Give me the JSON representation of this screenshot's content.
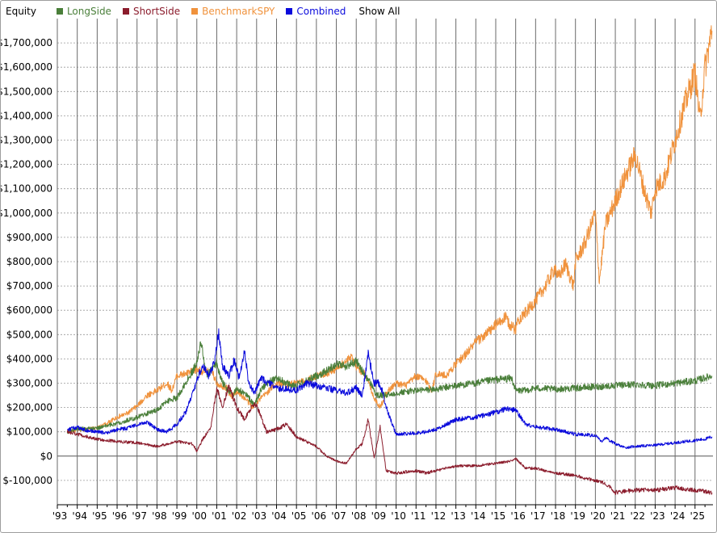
{
  "legend": {
    "title": "Equity",
    "show_all_label": "Show All",
    "items": [
      {
        "label": "LongSide",
        "color": "#4a7f3a"
      },
      {
        "label": "ShortSide",
        "color": "#8b1c2c"
      },
      {
        "label": "BenchmarkSPY",
        "color": "#f0923c"
      },
      {
        "label": "Combined",
        "color": "#0a0adc"
      }
    ]
  },
  "chart_data": {
    "type": "line",
    "title": "",
    "xlabel": "",
    "ylabel": "",
    "grid": true,
    "legend_position": "top-left",
    "xlim": [
      1993.0,
      2025.9
    ],
    "ylim": [
      -200000,
      1800000
    ],
    "y_ticks": [
      "$1,700,000",
      "$1,600,000",
      "$1,500,000",
      "$1,400,000",
      "$1,300,000",
      "$1,200,000",
      "$1,100,000",
      "$1,000,000",
      "$900,000",
      "$800,000",
      "$700,000",
      "$600,000",
      "$500,000",
      "$400,000",
      "$300,000",
      "$200,000",
      "$100,000",
      "$0",
      "$-100,000"
    ],
    "y_tick_values": [
      1700000,
      1600000,
      1500000,
      1400000,
      1300000,
      1200000,
      1100000,
      1000000,
      900000,
      800000,
      700000,
      600000,
      500000,
      400000,
      300000,
      200000,
      100000,
      0,
      -100000
    ],
    "x_ticks": [
      "'93",
      "'94",
      "'95",
      "'96",
      "'97",
      "'98",
      "'99",
      "'00",
      "'01",
      "'02",
      "'03",
      "'04",
      "'05",
      "'06",
      "'07",
      "'08",
      "'09",
      "'10",
      "'11",
      "'12",
      "'13",
      "'14",
      "'15",
      "'16",
      "'17",
      "'18",
      "'19",
      "'20",
      "'21",
      "'22",
      "'23",
      "'24",
      "'25"
    ],
    "x_tick_values": [
      1993,
      1994,
      1995,
      1996,
      1997,
      1998,
      1999,
      2000,
      2001,
      2002,
      2003,
      2004,
      2005,
      2006,
      2007,
      2008,
      2009,
      2010,
      2011,
      2012,
      2013,
      2014,
      2015,
      2016,
      2017,
      2018,
      2019,
      2020,
      2021,
      2022,
      2023,
      2024,
      2025
    ],
    "series": [
      {
        "name": "BenchmarkSPY",
        "color": "#f0923c",
        "x": [
          1993.5,
          1994.0,
          1994.5,
          1995.0,
          1995.5,
          1996.0,
          1996.5,
          1997.0,
          1997.5,
          1998.0,
          1998.5,
          1998.75,
          1999.0,
          1999.5,
          2000.0,
          2000.5,
          2000.75,
          2001.0,
          2001.5,
          2001.75,
          2002.0,
          2002.5,
          2002.8,
          2003.0,
          2003.5,
          2004.0,
          2004.5,
          2005.0,
          2005.5,
          2006.0,
          2006.5,
          2007.0,
          2007.5,
          2007.8,
          2008.0,
          2008.5,
          2008.9,
          2009.2,
          2009.5,
          2010.0,
          2010.5,
          2011.0,
          2011.5,
          2011.8,
          2012.0,
          2012.5,
          2013.0,
          2013.5,
          2014.0,
          2014.5,
          2015.0,
          2015.5,
          2015.7,
          2016.0,
          2016.1,
          2016.5,
          2017.0,
          2017.5,
          2018.0,
          2018.1,
          2018.5,
          2018.9,
          2019.0,
          2019.5,
          2020.0,
          2020.2,
          2020.5,
          2021.0,
          2021.5,
          2022.0,
          2022.5,
          2022.8,
          2023.0,
          2023.5,
          2024.0,
          2024.5,
          2025.0,
          2025.25,
          2025.5,
          2025.85
        ],
        "y": [
          100000,
          108000,
          110000,
          115000,
          135000,
          160000,
          175000,
          205000,
          250000,
          270000,
          300000,
          270000,
          330000,
          340000,
          355000,
          345000,
          350000,
          300000,
          280000,
          240000,
          270000,
          230000,
          200000,
          220000,
          260000,
          300000,
          295000,
          300000,
          310000,
          330000,
          340000,
          360000,
          390000,
          410000,
          370000,
          330000,
          240000,
          200000,
          260000,
          300000,
          290000,
          330000,
          310000,
          270000,
          340000,
          330000,
          380000,
          420000,
          470000,
          500000,
          540000,
          570000,
          540000,
          520000,
          560000,
          590000,
          640000,
          700000,
          780000,
          730000,
          790000,
          700000,
          800000,
          880000,
          1000000,
          720000,
          950000,
          1050000,
          1150000,
          1240000,
          1080000,
          1000000,
          1100000,
          1150000,
          1300000,
          1450000,
          1580000,
          1380000,
          1600000,
          1750000
        ]
      },
      {
        "name": "LongSide",
        "color": "#4a7f3a",
        "x": [
          1993.5,
          1994.0,
          1995.0,
          1996.0,
          1997.0,
          1998.0,
          1998.6,
          1999.0,
          1999.5,
          2000.0,
          2000.2,
          2000.5,
          2001.0,
          2001.3,
          2001.8,
          2002.0,
          2002.5,
          2002.9,
          2003.2,
          2003.5,
          2004.0,
          2004.5,
          2005.0,
          2005.5,
          2006.0,
          2006.5,
          2007.0,
          2007.5,
          2008.0,
          2008.3,
          2008.8,
          2009.0,
          2009.5,
          2010.0,
          2011.0,
          2012.0,
          2013.0,
          2014.0,
          2015.0,
          2015.8,
          2016.0,
          2016.5,
          2017.0,
          2018.0,
          2019.0,
          2020.0,
          2021.0,
          2022.0,
          2023.0,
          2024.0,
          2025.0,
          2025.85
        ],
        "y": [
          100000,
          112000,
          115000,
          135000,
          160000,
          190000,
          230000,
          240000,
          310000,
          380000,
          470000,
          330000,
          380000,
          300000,
          250000,
          280000,
          250000,
          210000,
          270000,
          300000,
          320000,
          300000,
          290000,
          310000,
          330000,
          350000,
          380000,
          370000,
          390000,
          350000,
          290000,
          250000,
          250000,
          260000,
          270000,
          275000,
          290000,
          300000,
          315000,
          320000,
          270000,
          270000,
          280000,
          275000,
          280000,
          285000,
          290000,
          295000,
          290000,
          300000,
          310000,
          330000
        ]
      },
      {
        "name": "Combined",
        "color": "#0a0adc",
        "x": [
          1993.5,
          1994.0,
          1994.5,
          1995.0,
          1995.5,
          1996.0,
          1996.5,
          1997.0,
          1997.5,
          1998.0,
          1998.5,
          1999.0,
          1999.5,
          1999.8,
          2000.0,
          2000.3,
          2000.6,
          2000.9,
          2001.1,
          2001.3,
          2001.6,
          2001.9,
          2002.1,
          2002.4,
          2002.6,
          2002.9,
          2003.2,
          2003.6,
          2004.0,
          2004.5,
          2005.0,
          2005.5,
          2006.0,
          2006.5,
          2007.0,
          2007.5,
          2008.0,
          2008.3,
          2008.6,
          2008.9,
          2009.1,
          2009.3,
          2009.5,
          2010.0,
          2011.0,
          2011.5,
          2012.0,
          2013.0,
          2014.0,
          2015.0,
          2015.5,
          2016.0,
          2016.5,
          2017.0,
          2018.0,
          2019.0,
          2020.0,
          2020.3,
          2020.5,
          2021.0,
          2021.5,
          2022.0,
          2023.0,
          2024.0,
          2025.0,
          2025.5,
          2025.85
        ],
        "y": [
          110000,
          118000,
          105000,
          100000,
          95000,
          110000,
          115000,
          130000,
          140000,
          110000,
          100000,
          130000,
          190000,
          260000,
          310000,
          380000,
          330000,
          390000,
          510000,
          370000,
          330000,
          400000,
          320000,
          430000,
          300000,
          260000,
          320000,
          300000,
          280000,
          275000,
          270000,
          300000,
          290000,
          280000,
          270000,
          260000,
          280000,
          250000,
          420000,
          300000,
          300000,
          270000,
          200000,
          90000,
          95000,
          100000,
          110000,
          150000,
          160000,
          180000,
          195000,
          190000,
          130000,
          120000,
          110000,
          90000,
          85000,
          60000,
          75000,
          50000,
          35000,
          40000,
          45000,
          55000,
          65000,
          70000,
          80000
        ]
      },
      {
        "name": "ShortSide",
        "color": "#8b1c2c",
        "x": [
          1993.5,
          1994.0,
          1995.0,
          1996.0,
          1997.0,
          1998.0,
          1999.0,
          1999.8,
          2000.0,
          2000.3,
          2000.7,
          2001.0,
          2001.3,
          2001.6,
          2002.0,
          2002.4,
          2002.8,
          2003.0,
          2003.5,
          2004.0,
          2004.5,
          2005.0,
          2005.5,
          2006.0,
          2006.5,
          2007.0,
          2007.5,
          2008.0,
          2008.3,
          2008.6,
          2008.9,
          2009.2,
          2009.5,
          2010.0,
          2011.0,
          2011.5,
          2012.0,
          2013.0,
          2014.0,
          2015.0,
          2015.8,
          2016.0,
          2016.5,
          2017.0,
          2018.0,
          2019.0,
          2020.0,
          2020.4,
          2020.8,
          2021.0,
          2022.0,
          2023.0,
          2024.0,
          2025.0,
          2025.85
        ],
        "y": [
          100000,
          90000,
          70000,
          60000,
          55000,
          40000,
          60000,
          50000,
          20000,
          70000,
          120000,
          280000,
          200000,
          290000,
          200000,
          150000,
          210000,
          210000,
          100000,
          110000,
          130000,
          80000,
          60000,
          40000,
          0,
          -20000,
          -30000,
          30000,
          50000,
          150000,
          -10000,
          120000,
          -60000,
          -70000,
          -60000,
          -70000,
          -60000,
          -40000,
          -40000,
          -30000,
          -20000,
          -10000,
          -50000,
          -50000,
          -70000,
          -80000,
          -100000,
          -110000,
          -130000,
          -150000,
          -140000,
          -140000,
          -130000,
          -140000,
          -150000
        ]
      }
    ]
  }
}
